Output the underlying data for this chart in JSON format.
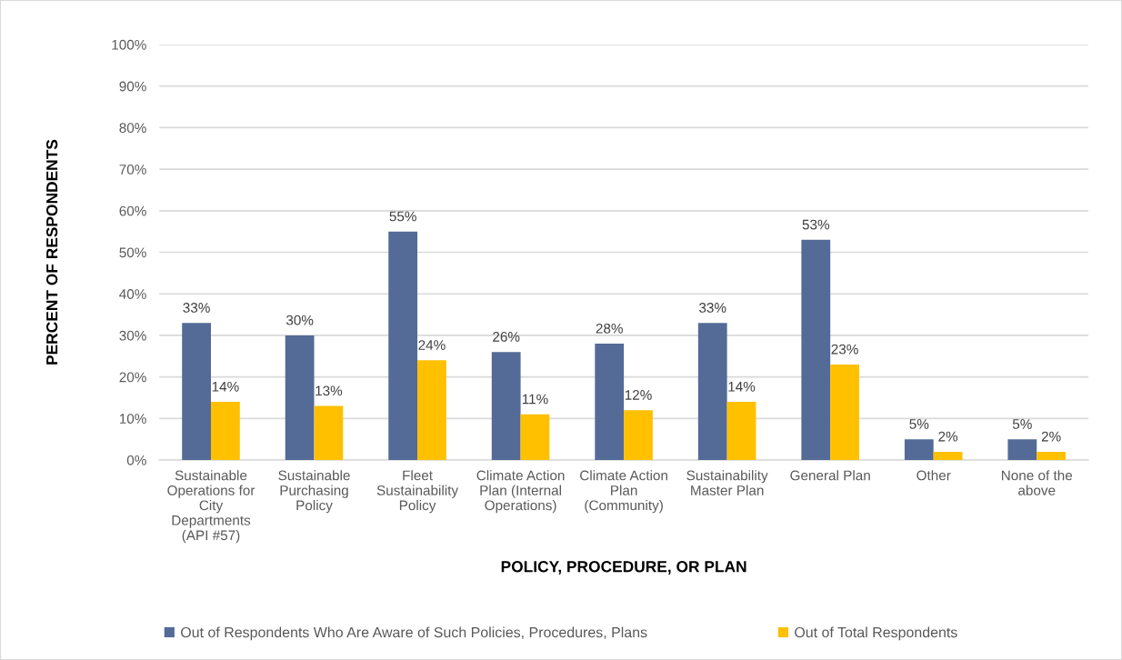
{
  "chart_data": {
    "type": "bar",
    "xlabel": "POLICY, PROCEDURE, OR PLAN",
    "ylabel": "PERCENT OF RESPONDENTS",
    "categories": [
      "Sustainable\nOperations for\nCity\nDepartments\n(API #57)",
      "Sustainable\nPurchasing\nPolicy",
      "Fleet\nSustainability\nPolicy",
      "Climate Action\nPlan (Internal\nOperations)",
      "Climate Action\nPlan\n(Community)",
      "Sustainability\nMaster Plan",
      "General Plan",
      "Other",
      "None of the\nabove"
    ],
    "series": [
      {
        "name": "Out of Respondents Who Are Aware of Such Policies, Procedures, Plans",
        "color": "#546a97",
        "values": [
          33,
          30,
          55,
          26,
          28,
          33,
          53,
          5,
          5
        ],
        "value_labels": [
          "33%",
          "30%",
          "55%",
          "26%",
          "28%",
          "33%",
          "53%",
          "5%",
          "5%"
        ]
      },
      {
        "name": "Out of Total Respondents",
        "color": "#ffc000",
        "values": [
          14,
          13,
          24,
          11,
          12,
          14,
          23,
          2,
          2
        ],
        "value_labels": [
          "14%",
          "13%",
          "24%",
          "11%",
          "12%",
          "14%",
          "23%",
          "2%",
          "2%"
        ]
      }
    ],
    "ylim": [
      0,
      100
    ],
    "yticks": [
      {
        "value": 0,
        "label": "0%"
      },
      {
        "value": 10,
        "label": "10%"
      },
      {
        "value": 20,
        "label": "20%"
      },
      {
        "value": 30,
        "label": "30%"
      },
      {
        "value": 40,
        "label": "40%"
      },
      {
        "value": 50,
        "label": "50%"
      },
      {
        "value": 60,
        "label": "60%"
      },
      {
        "value": 70,
        "label": "70%"
      },
      {
        "value": 80,
        "label": "80%"
      },
      {
        "value": 90,
        "label": "90%"
      },
      {
        "value": 100,
        "label": "100%"
      }
    ],
    "grid": "y",
    "legend": "bottom"
  }
}
